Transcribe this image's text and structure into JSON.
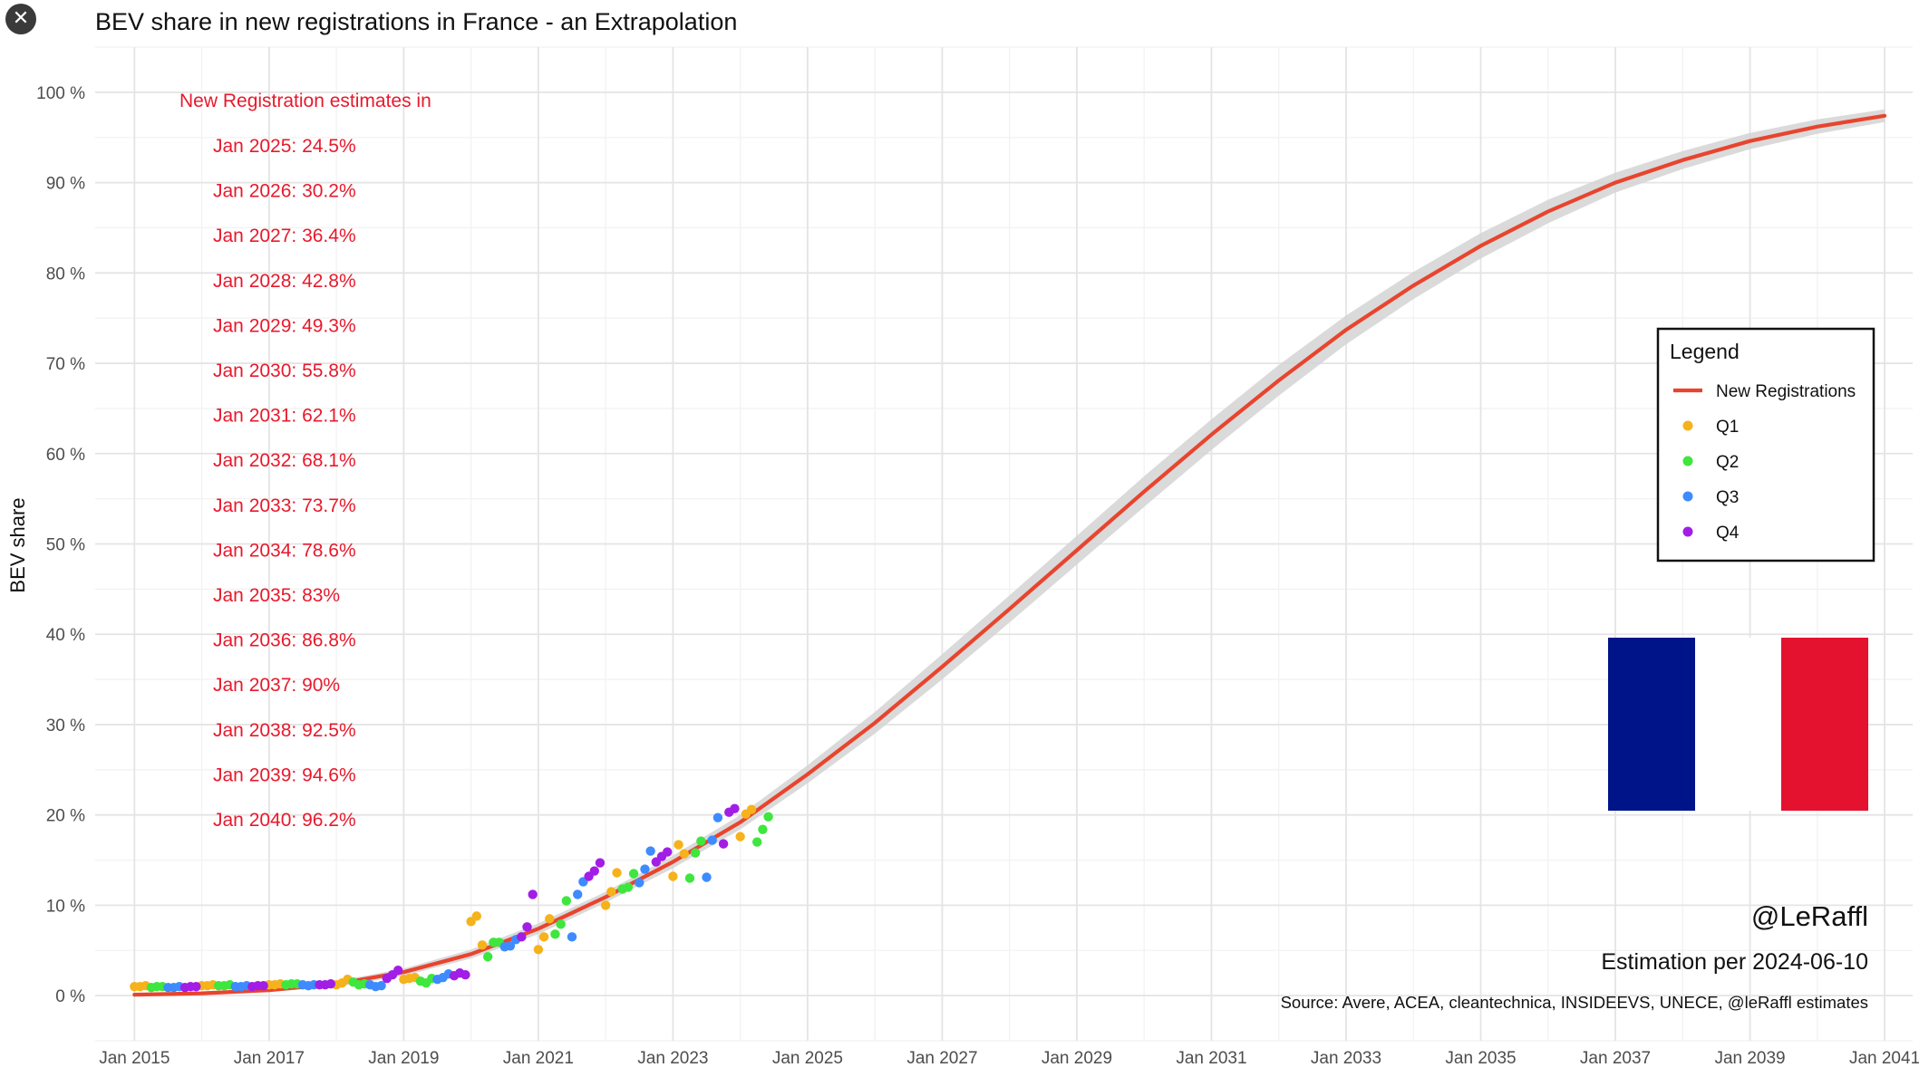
{
  "close_button": {
    "glyph": "✕"
  },
  "chart_data": {
    "type": "line",
    "title": "BEV share in new registrations in France - an Extrapolation",
    "ylabel": "BEV share",
    "xlabel": "",
    "x_range": [
      "2014-06",
      "2041-06"
    ],
    "ylim": [
      -5,
      105
    ],
    "y_ticks": [
      0,
      10,
      20,
      30,
      40,
      50,
      60,
      70,
      80,
      90,
      100
    ],
    "y_tick_labels": [
      "0 %",
      "10 %",
      "20 %",
      "30 %",
      "40 %",
      "50 %",
      "60 %",
      "70 %",
      "80 %",
      "90 %",
      "100 %"
    ],
    "x_ticks": [
      "2015-01",
      "2017-01",
      "2019-01",
      "2021-01",
      "2023-01",
      "2025-01",
      "2027-01",
      "2029-01",
      "2031-01",
      "2033-01",
      "2035-01",
      "2037-01",
      "2039-01",
      "2041-01"
    ],
    "x_tick_labels": [
      "Jan 2015",
      "Jan 2017",
      "Jan 2019",
      "Jan 2021",
      "Jan 2023",
      "Jan 2025",
      "Jan 2027",
      "Jan 2029",
      "Jan 2031",
      "Jan 2033",
      "Jan 2035",
      "Jan 2037",
      "Jan 2039",
      "Jan 2041"
    ],
    "grid": true,
    "series": [
      {
        "name": "New Registrations",
        "kind": "line",
        "color": "#e8442e",
        "band_color": "#d3d3d3",
        "points": [
          [
            "2015-01",
            0.1
          ],
          [
            "2016-01",
            0.25
          ],
          [
            "2017-01",
            0.6
          ],
          [
            "2018-01",
            1.3
          ],
          [
            "2019-01",
            2.6
          ],
          [
            "2020-01",
            4.6
          ],
          [
            "2021-01",
            7.4
          ],
          [
            "2022-01",
            10.9
          ],
          [
            "2023-01",
            14.8
          ],
          [
            "2024-01",
            19.2
          ],
          [
            "2025-01",
            24.5
          ],
          [
            "2026-01",
            30.2
          ],
          [
            "2027-01",
            36.4
          ],
          [
            "2028-01",
            42.8
          ],
          [
            "2029-01",
            49.3
          ],
          [
            "2030-01",
            55.8
          ],
          [
            "2031-01",
            62.1
          ],
          [
            "2032-01",
            68.1
          ],
          [
            "2033-01",
            73.7
          ],
          [
            "2034-01",
            78.6
          ],
          [
            "2035-01",
            83.0
          ],
          [
            "2036-01",
            86.8
          ],
          [
            "2037-01",
            90.0
          ],
          [
            "2038-01",
            92.5
          ],
          [
            "2039-01",
            94.6
          ],
          [
            "2040-01",
            96.2
          ],
          [
            "2041-01",
            97.4
          ]
        ],
        "band_half_width": [
          0.1,
          0.15,
          0.2,
          0.3,
          0.4,
          0.5,
          0.6,
          0.6,
          0.7,
          0.8,
          1.0,
          1.2,
          1.4,
          1.5,
          1.6,
          1.7,
          1.7,
          1.7,
          1.6,
          1.5,
          1.4,
          1.3,
          1.1,
          1.0,
          0.9,
          0.8,
          0.7
        ]
      },
      {
        "name": "Q1",
        "kind": "scatter",
        "color": "#f6b21b",
        "points": [
          [
            "2015-01",
            1.0
          ],
          [
            "2015-02",
            1.0
          ],
          [
            "2015-03",
            1.1
          ],
          [
            "2016-01",
            1.1
          ],
          [
            "2016-02",
            1.1
          ],
          [
            "2016-03",
            1.2
          ],
          [
            "2017-01",
            1.2
          ],
          [
            "2017-02",
            1.2
          ],
          [
            "2017-03",
            1.3
          ],
          [
            "2018-01",
            1.2
          ],
          [
            "2018-02",
            1.4
          ],
          [
            "2018-03",
            1.8
          ],
          [
            "2019-01",
            1.8
          ],
          [
            "2019-02",
            1.9
          ],
          [
            "2019-03",
            2.0
          ],
          [
            "2020-01",
            8.2
          ],
          [
            "2020-02",
            8.8
          ],
          [
            "2020-03",
            5.6
          ],
          [
            "2021-01",
            5.1
          ],
          [
            "2021-02",
            6.5
          ],
          [
            "2021-03",
            8.5
          ],
          [
            "2022-01",
            10.0
          ],
          [
            "2022-02",
            11.5
          ],
          [
            "2022-03",
            13.6
          ],
          [
            "2023-01",
            13.2
          ],
          [
            "2023-02",
            16.7
          ],
          [
            "2023-03",
            15.7
          ],
          [
            "2024-01",
            17.6
          ],
          [
            "2024-02",
            20.1
          ],
          [
            "2024-03",
            20.6
          ]
        ]
      },
      {
        "name": "Q2",
        "kind": "scatter",
        "color": "#3ee63e",
        "points": [
          [
            "2015-04",
            0.9
          ],
          [
            "2015-05",
            1.0
          ],
          [
            "2015-06",
            1.0
          ],
          [
            "2016-04",
            1.1
          ],
          [
            "2016-05",
            1.1
          ],
          [
            "2016-06",
            1.2
          ],
          [
            "2017-04",
            1.2
          ],
          [
            "2017-05",
            1.3
          ],
          [
            "2017-06",
            1.3
          ],
          [
            "2018-04",
            1.5
          ],
          [
            "2018-05",
            1.2
          ],
          [
            "2018-06",
            1.3
          ],
          [
            "2019-04",
            1.6
          ],
          [
            "2019-05",
            1.4
          ],
          [
            "2019-06",
            1.9
          ],
          [
            "2020-04",
            4.3
          ],
          [
            "2020-05",
            5.9
          ],
          [
            "2020-06",
            5.9
          ],
          [
            "2021-04",
            6.8
          ],
          [
            "2021-05",
            7.9
          ],
          [
            "2021-06",
            10.5
          ],
          [
            "2022-04",
            11.8
          ],
          [
            "2022-05",
            12.0
          ],
          [
            "2022-06",
            13.5
          ],
          [
            "2023-04",
            13.0
          ],
          [
            "2023-05",
            15.8
          ],
          [
            "2023-06",
            17.1
          ],
          [
            "2024-04",
            17.0
          ],
          [
            "2024-05",
            18.4
          ],
          [
            "2024-06",
            19.8
          ]
        ]
      },
      {
        "name": "Q3",
        "kind": "scatter",
        "color": "#3d8bff",
        "points": [
          [
            "2015-07",
            0.9
          ],
          [
            "2015-08",
            0.9
          ],
          [
            "2015-09",
            1.0
          ],
          [
            "2016-07",
            1.0
          ],
          [
            "2016-08",
            1.0
          ],
          [
            "2016-09",
            1.1
          ],
          [
            "2017-07",
            1.2
          ],
          [
            "2017-08",
            1.1
          ],
          [
            "2017-09",
            1.2
          ],
          [
            "2018-07",
            1.2
          ],
          [
            "2018-08",
            1.0
          ],
          [
            "2018-09",
            1.1
          ],
          [
            "2019-07",
            1.8
          ],
          [
            "2019-08",
            2.0
          ],
          [
            "2019-09",
            2.4
          ],
          [
            "2020-07",
            5.4
          ],
          [
            "2020-08",
            5.5
          ],
          [
            "2020-09",
            6.2
          ],
          [
            "2021-07",
            6.5
          ],
          [
            "2021-08",
            11.2
          ],
          [
            "2021-09",
            12.6
          ],
          [
            "2022-07",
            12.5
          ],
          [
            "2022-08",
            14.0
          ],
          [
            "2022-09",
            16.0
          ],
          [
            "2023-07",
            13.1
          ],
          [
            "2023-08",
            17.2
          ],
          [
            "2023-09",
            19.7
          ]
        ]
      },
      {
        "name": "Q4",
        "kind": "scatter",
        "color": "#a21de6",
        "points": [
          [
            "2015-10",
            0.9
          ],
          [
            "2015-11",
            1.0
          ],
          [
            "2015-12",
            1.0
          ],
          [
            "2016-10",
            1.0
          ],
          [
            "2016-11",
            1.1
          ],
          [
            "2016-12",
            1.1
          ],
          [
            "2017-10",
            1.2
          ],
          [
            "2017-11",
            1.2
          ],
          [
            "2017-12",
            1.3
          ],
          [
            "2018-10",
            1.9
          ],
          [
            "2018-11",
            2.3
          ],
          [
            "2018-12",
            2.8
          ],
          [
            "2019-10",
            2.2
          ],
          [
            "2019-11",
            2.5
          ],
          [
            "2019-12",
            2.3
          ],
          [
            "2020-10",
            6.5
          ],
          [
            "2020-11",
            7.6
          ],
          [
            "2020-12",
            11.2
          ],
          [
            "2021-10",
            13.2
          ],
          [
            "2021-11",
            13.8
          ],
          [
            "2021-12",
            14.7
          ],
          [
            "2022-10",
            14.8
          ],
          [
            "2022-11",
            15.4
          ],
          [
            "2022-12",
            15.9
          ],
          [
            "2023-10",
            16.8
          ],
          [
            "2023-11",
            20.3
          ],
          [
            "2023-12",
            20.7
          ]
        ]
      }
    ],
    "annotations": {
      "header": "New Registration estimates in",
      "lines": [
        "Jan 2025: 24.5%",
        "Jan 2026: 30.2%",
        "Jan 2027: 36.4%",
        "Jan 2028: 42.8%",
        "Jan 2029: 49.3%",
        "Jan 2030: 55.8%",
        "Jan 2031: 62.1%",
        "Jan 2032: 68.1%",
        "Jan 2033: 73.7%",
        "Jan 2034: 78.6%",
        "Jan 2035: 83%",
        "Jan 2036: 86.8%",
        "Jan 2037: 90%",
        "Jan 2038: 92.5%",
        "Jan 2039: 94.6%",
        "Jan 2040: 96.2%"
      ],
      "color": "#e8192c"
    },
    "legend": {
      "title": "Legend",
      "placement": "right",
      "entries": [
        "New Registrations",
        "Q1",
        "Q2",
        "Q3",
        "Q4"
      ]
    },
    "flag": {
      "name": "france-flag",
      "colors": [
        "#001489",
        "#ffffff",
        "#e4112f"
      ]
    },
    "author": "@LeRaffl",
    "estimation": "Estimation per 2024-06-10",
    "source": "Source: Avere, ACEA, cleantechnica, INSIDEEVS, UNECE, @leRaffl estimates"
  }
}
